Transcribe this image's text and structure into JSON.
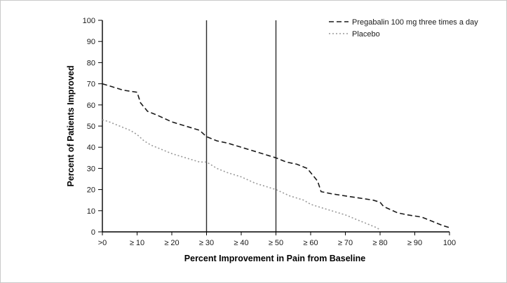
{
  "chart_data": {
    "type": "line",
    "title": "",
    "xlabel": "Percent Improvement in Pain from Baseline",
    "ylabel": "Percent of Patients Improved",
    "xlim": [
      0,
      100
    ],
    "ylim": [
      0,
      100
    ],
    "grid": "off",
    "legend_position": "top-right",
    "y_ticks": [
      0,
      10,
      20,
      30,
      40,
      50,
      60,
      70,
      80,
      90,
      100
    ],
    "x_ticks": [
      {
        "value": 0,
        "label": ">0"
      },
      {
        "value": 10,
        "label": "≥ 10"
      },
      {
        "value": 20,
        "label": "≥ 20"
      },
      {
        "value": 30,
        "label": "≥ 30"
      },
      {
        "value": 40,
        "label": "≥ 40"
      },
      {
        "value": 50,
        "label": "≥ 50"
      },
      {
        "value": 60,
        "label": "≥ 60"
      },
      {
        "value": 70,
        "label": "≥ 70"
      },
      {
        "value": 80,
        "label": "≥ 80"
      },
      {
        "value": 90,
        "label": "≥ 90"
      },
      {
        "value": 100,
        "label": "100"
      }
    ],
    "reference_lines_x": [
      30,
      50
    ],
    "series": [
      {
        "name": "Pregabalin 100 mg three times a day",
        "style": "dashed",
        "color": "#1a1a1a",
        "points": [
          [
            0,
            70
          ],
          [
            2,
            69
          ],
          [
            6,
            67
          ],
          [
            10,
            66
          ],
          [
            11,
            61
          ],
          [
            13,
            57
          ],
          [
            16,
            55
          ],
          [
            20,
            52
          ],
          [
            24,
            50
          ],
          [
            28,
            48
          ],
          [
            30,
            45
          ],
          [
            33,
            43
          ],
          [
            36,
            42
          ],
          [
            40,
            40
          ],
          [
            44,
            38
          ],
          [
            48,
            36
          ],
          [
            50,
            35
          ],
          [
            53,
            33
          ],
          [
            56,
            32
          ],
          [
            59,
            30
          ],
          [
            60,
            28
          ],
          [
            62,
            24
          ],
          [
            63,
            19
          ],
          [
            66,
            18
          ],
          [
            70,
            17
          ],
          [
            74,
            16
          ],
          [
            78,
            15
          ],
          [
            80,
            14
          ],
          [
            81,
            12
          ],
          [
            85,
            9
          ],
          [
            88,
            8
          ],
          [
            92,
            7
          ],
          [
            95,
            5
          ],
          [
            98,
            3
          ],
          [
            100,
            2
          ]
        ]
      },
      {
        "name": "Placebo",
        "style": "dotted",
        "color": "#999999",
        "points": [
          [
            0,
            53
          ],
          [
            2,
            52
          ],
          [
            5,
            50
          ],
          [
            8,
            48
          ],
          [
            10,
            46
          ],
          [
            12,
            43
          ],
          [
            14,
            41
          ],
          [
            17,
            39
          ],
          [
            20,
            37
          ],
          [
            24,
            35
          ],
          [
            28,
            33
          ],
          [
            30,
            33
          ],
          [
            33,
            30
          ],
          [
            36,
            28
          ],
          [
            40,
            26
          ],
          [
            44,
            23
          ],
          [
            48,
            21
          ],
          [
            50,
            20
          ],
          [
            54,
            17
          ],
          [
            58,
            15
          ],
          [
            60,
            13
          ],
          [
            64,
            11
          ],
          [
            68,
            9
          ],
          [
            70,
            8
          ],
          [
            73,
            6
          ],
          [
            76,
            4
          ],
          [
            79,
            2
          ],
          [
            80,
            1
          ]
        ]
      }
    ]
  }
}
